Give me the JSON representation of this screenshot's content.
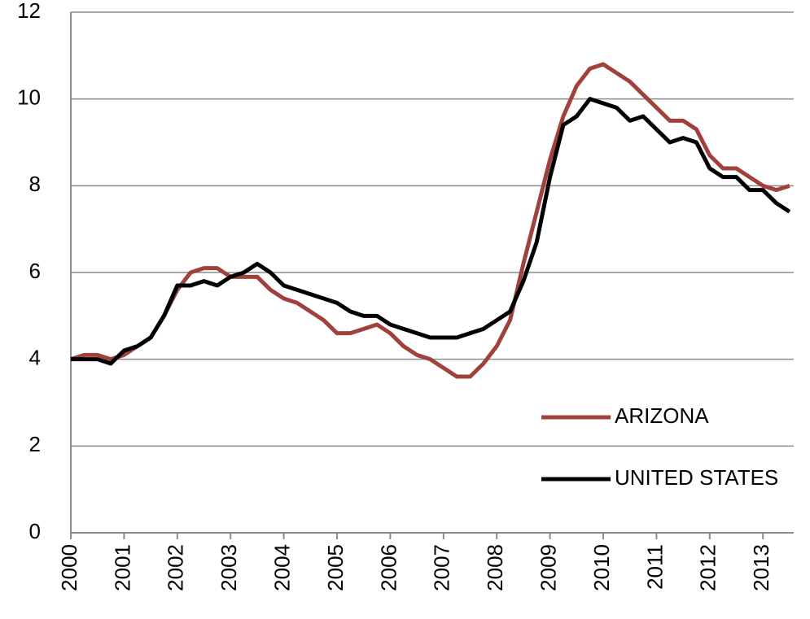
{
  "chart_data": {
    "type": "line",
    "categories": [
      "2000",
      null,
      null,
      null,
      "2001",
      null,
      null,
      null,
      "2002",
      null,
      null,
      null,
      "2003",
      null,
      null,
      null,
      "2004",
      null,
      null,
      null,
      "2005",
      null,
      null,
      null,
      "2006",
      null,
      null,
      null,
      "2007",
      null,
      null,
      null,
      "2008",
      null,
      null,
      null,
      "2009",
      null,
      null,
      null,
      "2010",
      null,
      null,
      null,
      "2011",
      null,
      null,
      null,
      "2012",
      null,
      null,
      null,
      "2013",
      null,
      null
    ],
    "series": [
      {
        "name": "ARIZONA",
        "color": "#a0413c",
        "values": [
          4.0,
          4.1,
          4.1,
          4.0,
          4.1,
          4.3,
          4.5,
          5.0,
          5.6,
          6.0,
          6.1,
          6.1,
          5.9,
          5.9,
          5.9,
          5.6,
          5.4,
          5.3,
          5.1,
          4.9,
          4.6,
          4.6,
          4.7,
          4.8,
          4.6,
          4.3,
          4.1,
          4.0,
          3.8,
          3.6,
          3.6,
          3.9,
          4.3,
          4.9,
          6.2,
          7.4,
          8.6,
          9.6,
          10.3,
          10.7,
          10.8,
          10.6,
          10.4,
          10.1,
          9.8,
          9.5,
          9.5,
          9.3,
          8.7,
          8.4,
          8.4,
          8.2,
          8.0,
          7.9,
          8.0
        ]
      },
      {
        "name": "UNITED STATES",
        "color": "#000000",
        "values": [
          4.0,
          4.0,
          4.0,
          3.9,
          4.2,
          4.3,
          4.5,
          5.0,
          5.7,
          5.7,
          5.8,
          5.7,
          5.9,
          6.0,
          6.2,
          6.0,
          5.7,
          5.6,
          5.5,
          5.4,
          5.3,
          5.1,
          5.0,
          5.0,
          4.8,
          4.7,
          4.6,
          4.5,
          4.5,
          4.5,
          4.6,
          4.7,
          4.9,
          5.1,
          5.8,
          6.7,
          8.2,
          9.4,
          9.6,
          10.0,
          9.9,
          9.8,
          9.5,
          9.6,
          9.3,
          9.0,
          9.1,
          9.0,
          8.4,
          8.2,
          8.2,
          7.9,
          7.9,
          7.6,
          7.4
        ]
      }
    ],
    "ylim": [
      0,
      12
    ],
    "yticks": [
      0,
      2,
      4,
      6,
      8,
      10,
      12
    ],
    "grid": true,
    "legend": "lower right"
  }
}
